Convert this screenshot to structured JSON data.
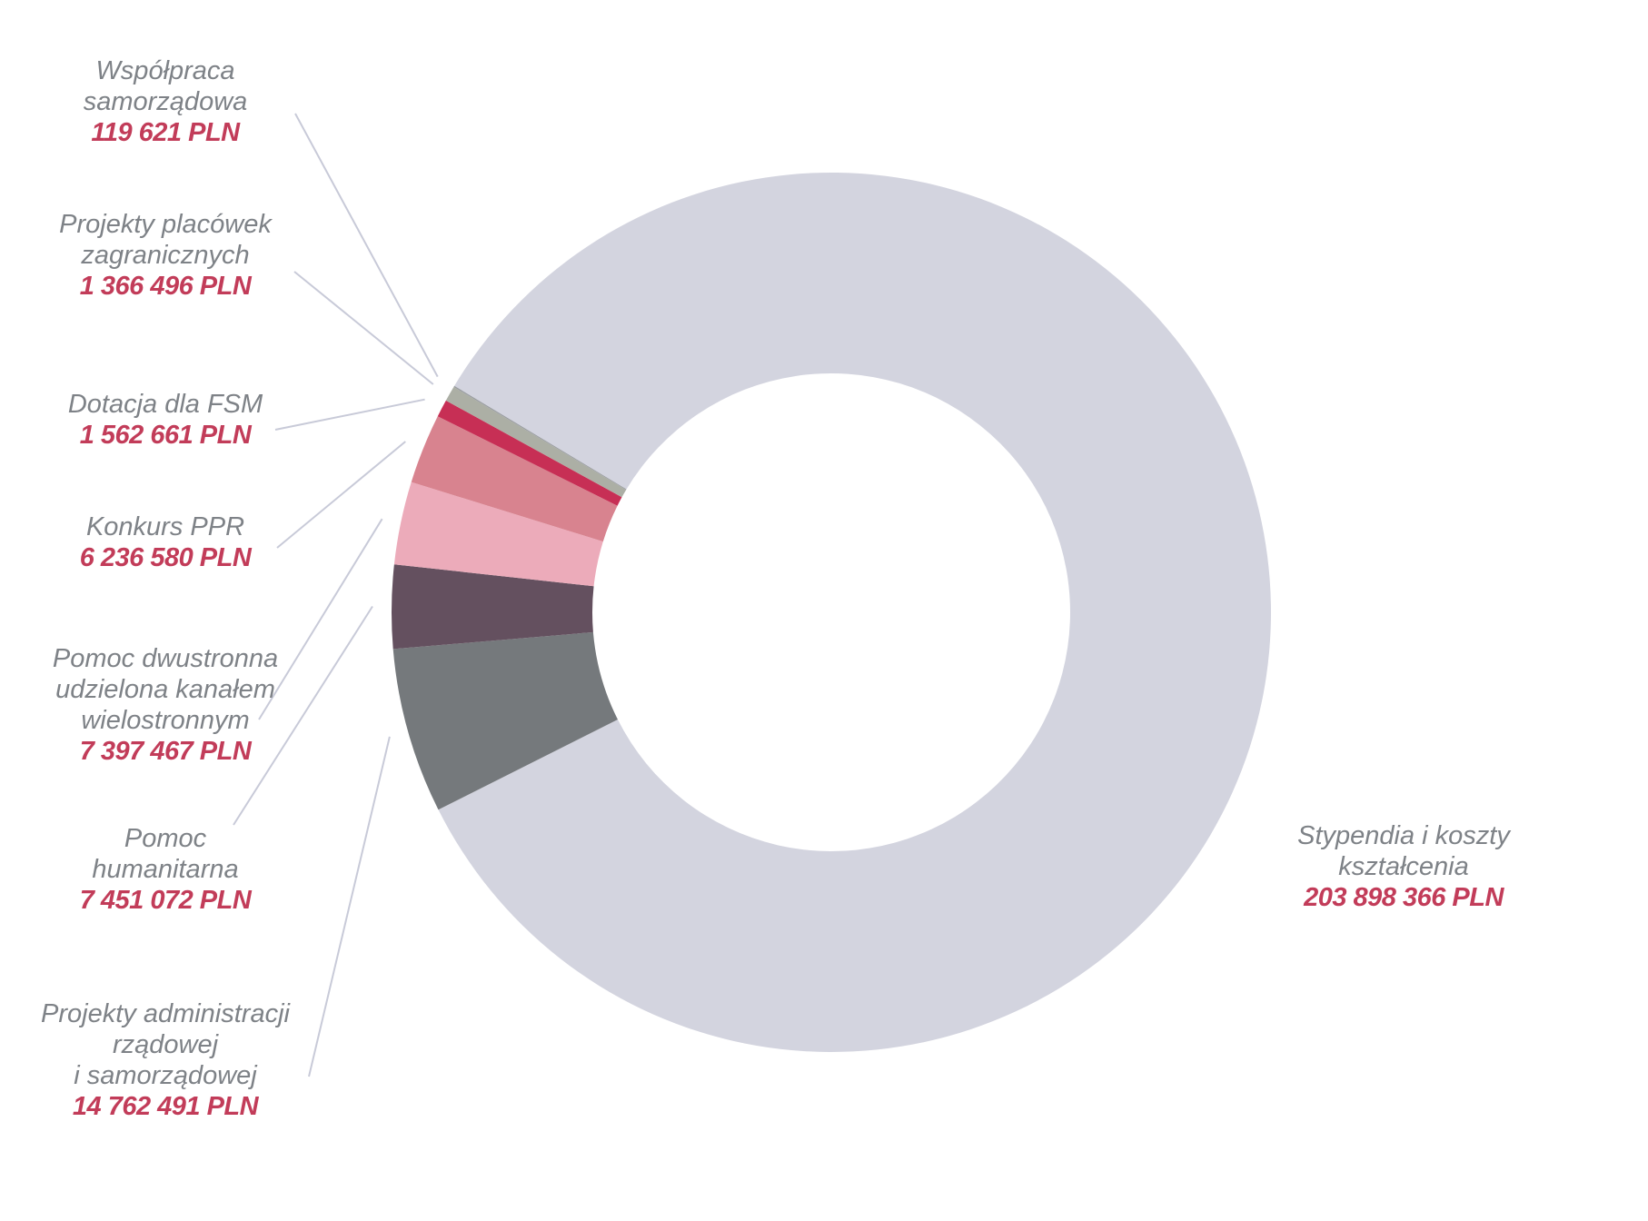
{
  "chart_data": {
    "type": "pie",
    "variant": "donut",
    "unit": "PLN",
    "rotation_deg": 301,
    "direction": "clockwise",
    "legend_position": "labels-with-leader-lines",
    "leader_line_color": "#c8cad8",
    "label_text_color": "#7e8287",
    "value_text_color": "#c23c59",
    "segments": [
      {
        "key": "stypendia",
        "label": "Stypendia i koszty kształcenia",
        "label_lines": [
          "Stypendia i koszty",
          "kształcenia"
        ],
        "value": 203898366,
        "value_text": "203 898 366 PLN",
        "color": "#d3d4df"
      },
      {
        "key": "projekty-administracji",
        "label": "Projekty administracji rządowej i samorządowej",
        "label_lines": [
          "Projekty administracji",
          "rządowej",
          "i samorządowej"
        ],
        "value": 14762491,
        "value_text": "14 762 491 PLN",
        "color": "#75797c"
      },
      {
        "key": "pomoc-humanitarna",
        "label": "Pomoc humanitarna",
        "label_lines": [
          "Pomoc",
          "humanitarna"
        ],
        "value": 7451072,
        "value_text": "7 451 072 PLN",
        "color": "#64505f"
      },
      {
        "key": "pomoc-dwustronna",
        "label": "Pomoc dwustronna udzielona kanałem wielostronnym",
        "label_lines": [
          "Pomoc dwustronna",
          "udzielona kanałem",
          "wielostronnym"
        ],
        "value": 7397467,
        "value_text": "7 397 467 PLN",
        "color": "#ecabba"
      },
      {
        "key": "konkurs-ppr",
        "label": "Konkurs PPR",
        "label_lines": [
          "Konkurs PPR"
        ],
        "value": 6236580,
        "value_text": "6 236 580 PLN",
        "color": "#d8838f"
      },
      {
        "key": "dotacja-fsm",
        "label": "Dotacja dla FSM",
        "label_lines": [
          "Dotacja dla FSM"
        ],
        "value": 1562661,
        "value_text": "1 562 661 PLN",
        "color": "#c72f55"
      },
      {
        "key": "projekty-placowek",
        "label": "Projekty placówek zagranicznych",
        "label_lines": [
          "Projekty placówek",
          "zagranicznych"
        ],
        "value": 1366496,
        "value_text": "1 366 496 PLN",
        "color": "#acafa5"
      },
      {
        "key": "wspolpraca-samorzadowa",
        "label": "Współpraca samorządowa",
        "label_lines": [
          "Współpraca",
          "samorządowa"
        ],
        "value": 119621,
        "value_text": "119 621 PLN",
        "color": "#9a9da1"
      }
    ]
  }
}
